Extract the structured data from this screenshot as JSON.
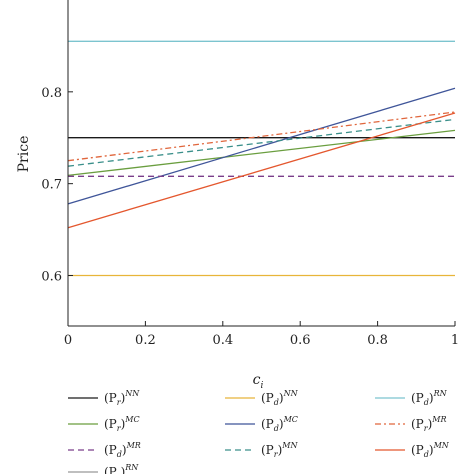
{
  "chart_data": {
    "type": "line",
    "xlabel": "c",
    "xlabel_sub": "i",
    "ylabel": "Price",
    "xlim": [
      0,
      1
    ],
    "ylim": [
      0.545,
      0.9
    ],
    "xticks": [
      "0",
      "0.2",
      "0.4",
      "0.6",
      "0.8",
      "1"
    ],
    "xtick_values": [
      0,
      0.2,
      0.4,
      0.6,
      0.8,
      1
    ],
    "yticks": [
      "0.6",
      "0.7",
      "0.8"
    ],
    "ytick_values": [
      0.6,
      0.7,
      0.8
    ],
    "grid": false,
    "legend_placement": "below",
    "series": [
      {
        "key": "pr-nn",
        "base": "(P",
        "sub": "r",
        "sup": "NN",
        "color": "#1a1a1a",
        "dash": "",
        "x": [
          0,
          1
        ],
        "y": [
          0.75,
          0.75
        ]
      },
      {
        "key": "pd-nn",
        "base": "(P",
        "sub": "d",
        "sup": "NN",
        "color": "#e8b53a",
        "dash": "",
        "x": [
          0,
          1
        ],
        "y": [
          0.6,
          0.6
        ]
      },
      {
        "key": "pd-rn",
        "base": "(P",
        "sub": "d",
        "sup": "RN",
        "color": "#7cc4cf",
        "dash": "",
        "x": [
          0,
          1
        ],
        "y": [
          0.855,
          0.855
        ]
      },
      {
        "key": "pr-mc",
        "base": "(P",
        "sub": "r",
        "sup": "MC",
        "color": "#6a9e3f",
        "dash": "",
        "x": [
          0,
          1
        ],
        "y": [
          0.709,
          0.758
        ]
      },
      {
        "key": "pd-mc",
        "base": "(P",
        "sub": "d",
        "sup": "MC",
        "color": "#3f5599",
        "dash": "",
        "x": [
          0,
          1
        ],
        "y": [
          0.678,
          0.804
        ]
      },
      {
        "key": "pr-mr",
        "base": "(P",
        "sub": "r",
        "sup": "MR",
        "color": "#e0663c",
        "dash": "6,3,2,3",
        "x": [
          0,
          1
        ],
        "y": [
          0.725,
          0.778
        ]
      },
      {
        "key": "pd-mr",
        "base": "(P",
        "sub": "d",
        "sup": "MR",
        "color": "#7a3d8a",
        "dash": "6,4",
        "x": [
          0,
          1
        ],
        "y": [
          0.708,
          0.708
        ]
      },
      {
        "key": "pr-mn",
        "base": "(P",
        "sub": "r",
        "sup": "MN",
        "color": "#3a8f8a",
        "dash": "6,4",
        "x": [
          0,
          1
        ],
        "y": [
          0.719,
          0.77
        ]
      },
      {
        "key": "pd-mn",
        "base": "(P",
        "sub": "d",
        "sup": "MN",
        "color": "#e4572e",
        "dash": "",
        "x": [
          0,
          1
        ],
        "y": [
          0.652,
          0.777
        ]
      },
      {
        "key": "pr-rn",
        "base": "(P",
        "sub": "r",
        "sup": "RN",
        "color": "#999999",
        "dash": "",
        "x": [
          0,
          1
        ],
        "y": [
          0.75,
          0.75
        ]
      }
    ]
  }
}
